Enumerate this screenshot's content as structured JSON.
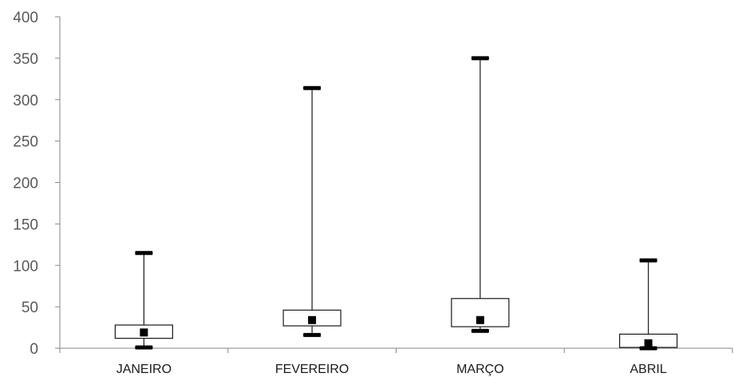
{
  "chart_data": {
    "type": "boxplot",
    "categories": [
      "JANEIRO",
      "FEVEREIRO",
      "MARÇO",
      "ABRIL"
    ],
    "ylim": [
      0,
      400
    ],
    "yticks": [
      0,
      50,
      100,
      150,
      200,
      250,
      300,
      350,
      400
    ],
    "grid": false,
    "legend": "none",
    "boxes": [
      {
        "category": "JANEIRO",
        "min": 1,
        "q1": 12,
        "median": 19,
        "q3": 28,
        "max": 115
      },
      {
        "category": "FEVEREIRO",
        "min": 16,
        "q1": 27,
        "median": 34,
        "q3": 46,
        "max": 314
      },
      {
        "category": "MARÇO",
        "min": 21,
        "q1": 26,
        "median": 34,
        "q3": 60,
        "max": 350
      },
      {
        "category": "ABRIL",
        "min": 0,
        "q1": 1,
        "median": 6,
        "q3": 17,
        "max": 106
      }
    ],
    "colors": {
      "axis": "#868686",
      "box_fill": "#ffffff",
      "box_stroke": "#1a1a1a",
      "marker": "#000000"
    }
  }
}
